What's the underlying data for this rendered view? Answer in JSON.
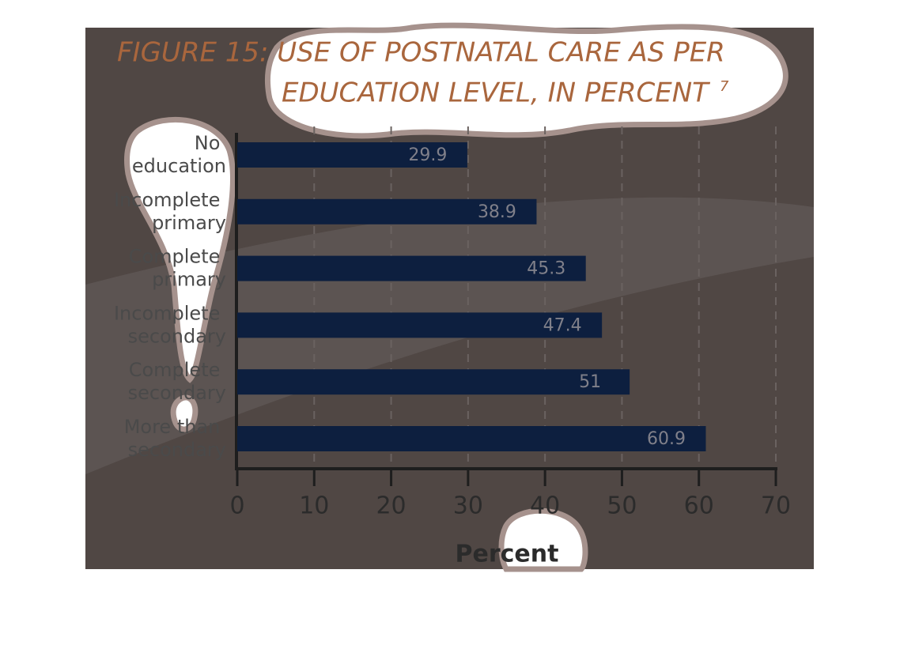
{
  "chart_data": {
    "type": "bar",
    "orientation": "horizontal",
    "title": [
      "FIGURE 15: USE OF POSTNATAL CARE AS PER",
      "EDUCATION LEVEL, IN PERCENT"
    ],
    "title_footnote": "7",
    "categories": [
      "No education",
      "Incomplete primary",
      "Complete primary",
      "Incomplete secondary",
      "Complete secondary",
      "More than secondary"
    ],
    "values": [
      29.9,
      38.9,
      45.3,
      47.4,
      51,
      60.9
    ],
    "color": "#0d1f3f",
    "xlabel": "Percent",
    "xlim": [
      0,
      70
    ],
    "xticks": [
      0,
      10,
      20,
      30,
      40,
      50,
      60,
      70
    ],
    "grid": true
  }
}
